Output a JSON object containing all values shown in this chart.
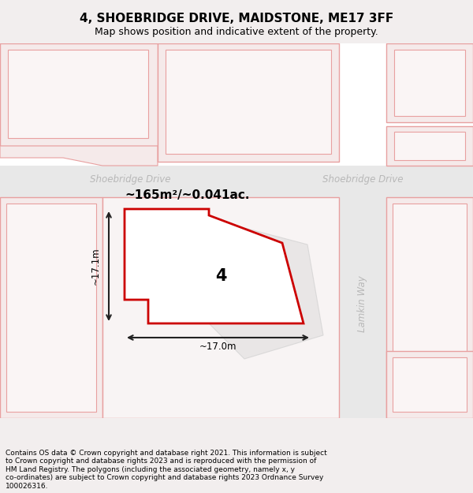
{
  "title": "4, SHOEBRIDGE DRIVE, MAIDSTONE, ME17 3FF",
  "subtitle": "Map shows position and indicative extent of the property.",
  "footer": "Contains OS data © Crown copyright and database right 2021. This information is subject\nto Crown copyright and database rights 2023 and is reproduced with the permission of\nHM Land Registry. The polygons (including the associated geometry, namely x, y\nco-ordinates) are subject to Crown copyright and database rights 2023 Ordnance Survey\n100026316.",
  "bg_color": "#f2eeee",
  "map_bg": "#ffffff",
  "prop_fill": "#ffffff",
  "prop_edge": "#cc0000",
  "block_fill": "#f5eaea",
  "block_edge": "#e8a0a0",
  "road_fill": "#e8e8e8",
  "road_label": "#b8b8b8",
  "ghost_fill": "#e0dede",
  "ghost_edge": "#cccccc",
  "dim_color": "#222222",
  "area_text": "~165m²/~0.041ac.",
  "width_text": "~17.0m",
  "height_text": "~17.1m",
  "num_text": "4",
  "label_road1": "Shoebridge Drive",
  "label_road2": "Shoebridge Drive",
  "label_road3": "Lamkin Way"
}
